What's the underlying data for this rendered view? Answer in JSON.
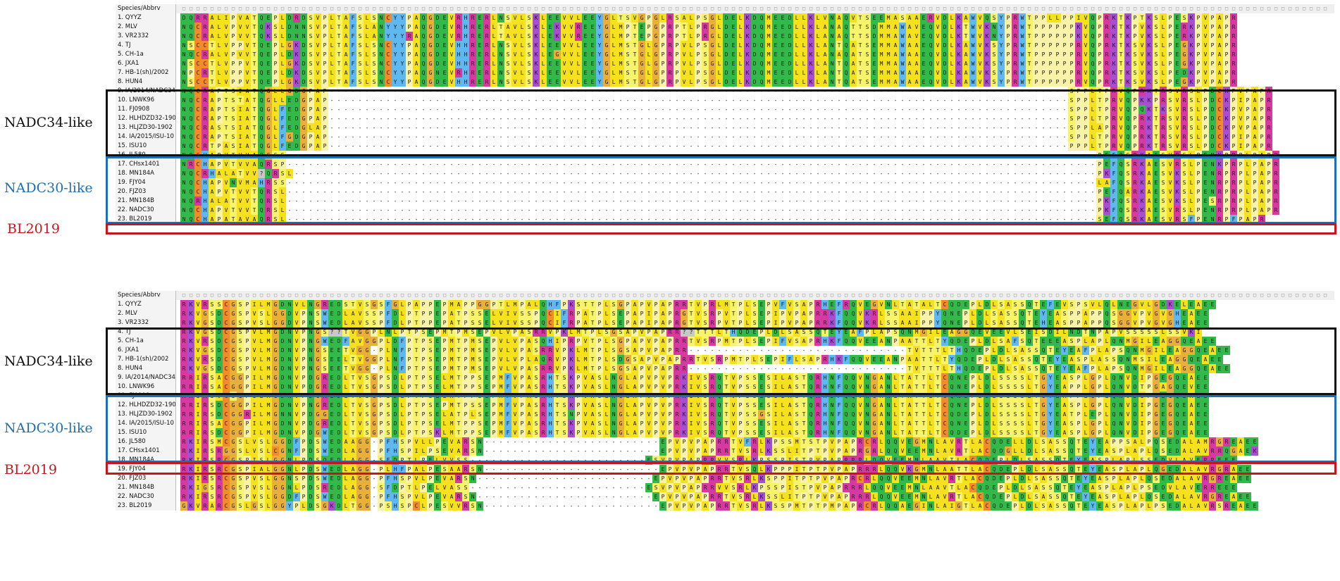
{
  "header_label": "Species/Abbrv",
  "groups": [
    {
      "label": "NADC34-like",
      "color": "#111111"
    },
    {
      "label": "NADC30-like",
      "color": "#1f6fb2"
    },
    {
      "label": "BL2019",
      "color": "#c4161c"
    }
  ],
  "blocks": [
    {
      "id": "top",
      "rows": [
        {
          "name": "1. QYYZ",
          "seq": "DQRRALIPVATQEPLDRDSVPLTAFSLSNCYYPAQGDEVRHRERLNSVLSKLEEVVLEEYGLTSVGPGLRSALPSGLDELKDQMEEDLLKLVNAQVTSEEMASAAERVDLKAWVQSYPRWTPPLLPPIVQPRKTKPTKSLPESKPVPAPR"
        },
        {
          "name": "2. MLV",
          "seq": "NQCRALVPVVTQKSLDNNSVPLTAFSLANYYYPAQGDEVRHRERLTAVLSKLEKVVREEYGLMPTEPGPRPTLPRGLDELKDQMEEDLLKLANAQTTSDMMAWAVEQVDLKTWVKNYPRWTPPPPPPKVQPRKTKPVKSLPERKPVPAPR"
        },
        {
          "name": "3. VR2332",
          "seq": "NQCRALVPVVTQKSLDNNSVPLTAFSLANYYYRAQGDEVRHRERLTAVLSKLEKVVREEYGLMPTEPGPRPTLPRGLDELKDQMEEDLLKLANAQTTSDMMAWAVEQVDLKTWVKNYPRWTPPPPPPKVQPRKTKPVKSLPERKPVPAPR"
        },
        {
          "name": "4. TJ",
          "seq": "NSCCTLVPPVTQEPLGKDSVPLTAFSLSNCYYPAQGDEVHHRERLNSVLSKLEEVVLEEYGLMSTGLGPRPVLPSGLDELKDQMEEDLLKLANTQATSEMMAWAAEQVDLKAWVKSYPRWTPPPPPPRVQPRKTKSVKSLPEGKPVPAPR"
        },
        {
          "name": "5. CH-1a",
          "seq": "NQCRALVPVVTQEPLDKDSVPLTAFSLSNCYYPAQGDEVHHRERLNSVLSKLEGVVLEEYGLMSTGLGPRPVLPSGLDELKDQMEEDLLKLANAQATSEMMAWAAEQVDLKAWVKSYPRWTPPPPPPRVQPRKTKSVKSLPEGKPVPAPR"
        },
        {
          "name": "6. JXA1",
          "seq": "NSCCTLVPPVTQEPLGKDSVPLTAFSLSNCYYPAQGDEVHHRERLNSVLSKLEEVVLEEYGLMSTGLGPRPVLPSGLDELKDQMEEDLLKLANTQATSEMMAWAAEQVDLKAWVKSYPRWTPPPPPPRVQPRKTKSVKSLPEGKPVPAPR"
        },
        {
          "name": "7. HB-1(sh)/2002",
          "seq": "NPCRTLVPPVTQEPLDKDSVPLTAFSLSNCYYPAQGNEVRHRERLNSVLSKLEEVVLEEYGLMSTGLGPRPVLPSGLDELKDQMEEDLLKLANTQATSEMMAWAAEQVDLKAWVKSYPRWTPPPPPPRVQPRKTKSVKSLPEDKPVPAPR"
        },
        {
          "name": "8. HUN4",
          "seq": "NSCCTLVPPVTQEPLGKDSVPLTAFSLSNCYYPAQGDEVHHRERLNSVLSKLEEVVLEEYGLMSTGLGPRPVLPSGLDELKDQMEEDLLKLANTQATSEMMAWAAEQVDLKAWVKSYPRWTPPPPPPRVQPRKTKSVKSLPEGKPVPAPR"
        },
        {
          "name": "9. IA/2014/NADC34",
          "seq": "NQCRAPTSIATQGLLGDGPAP---------------------------------------------------------------------------------------------------------SPPLTPRVQPRKTRSVRSLPDCKPVPAPR"
        },
        {
          "name": "10. LNWK96",
          "seq": "NQCRAPTSTATQGLLEDGPAP---------------------------------------------------------------------------------------------------------SPPLTPRVQPKKPRSVRSLPDCKPIPAPR"
        },
        {
          "name": "11. FJ0908",
          "seq": "NQCRAPTSIATQGLFEDGPAP---------------------------------------------------------------------------------------------------------SPPLTPRVQPQKTKSVRSLPDCKPVPAPR"
        },
        {
          "name": "12. HLHDZD32-1901",
          "seq": "NQCRAPTSIATQGLFEDGPAP---------------------------------------------------------------------------------------------------------SPPLTPRVQPRKTRSVRSLPDCKPVPAPR"
        },
        {
          "name": "13. HLJZD30-1902",
          "seq": "NQCRASTSIATQGLFEDGLAP---------------------------------------------------------------------------------------------------------SPPLAPRVQPRKTRSVRSLPDCKPVPAPR"
        },
        {
          "name": "14. IA/2015/ISU-10",
          "seq": "NQCRAPTSIATQGLFGDGPAP---------------------------------------------------------------------------------------------------------SPPLTPRVQPRKTRSVRSLPDCKPIPAPR"
        },
        {
          "name": "15. ISU10",
          "seq": "NQCRTPASIATQGLFEDGPAP---------------------------------------------------------------------------------------------------------PPPLTPRVQPRKTRSVRSLPDCKPIPAPR"
        },
        {
          "name": "16. JL580",
          "seq": "NQCHAPVTVVAQGSS-------------------------------------------------------------------------------------------------------------------PEFQSRKAESVRSLPENKPRPLPAPR"
        },
        {
          "name": "17. CHsx1401",
          "seq": "NRCHAPVTVVAQRSP-------------------------------------------------------------------------------------------------------------------PEFQSRKAESVRSLPENKPRPLPAPR"
        },
        {
          "name": "18. MN184A",
          "seq": "NQCRHALATVV?QRSL------------------------------------------------------------------------------------------------------------------PKFQSRKAESVKSLPENRPRPLPAPR"
        },
        {
          "name": "19. FJY04",
          "seq": "NQCHAPVNVMAHRSS-------------------------------------------------------------------------------------------------------------------LAFQSRKAESVKSLPENRPRPLPAPR"
        },
        {
          "name": "20. FJZ03",
          "seq": "NQCHAPVTVVTQRSL-------------------------------------------------------------------------------------------------------------------PEFQARKAESVKSLPENRPRPLPAPR"
        },
        {
          "name": "21. MN184B",
          "seq": "NQRHALATVVTQRSL-------------------------------------------------------------------------------------------------------------------PKFQSRKAESVKSLPESRPRPLPAPR"
        },
        {
          "name": "22. NADC30",
          "seq": "NQCHAPVTVVTQRSL-------------------------------------------------------------------------------------------------------------------PKFQSRKAESVRSLPENRPRPLPAPR"
        },
        {
          "name": "23. BL2019",
          "seq": "NQCHAPATAVAQRSL-------------------------------------------------------------------------------------------------------------------SEFQSRKAESVRSFPENRPFPAPR"
        }
      ]
    },
    {
      "id": "bottom",
      "rows": [
        {
          "name": "1. QYYZ",
          "seq": "RKVRSSCGSPILMGDNVLNGREDSTVSGSFGLPAPPEPMAPPGGPTLMPALQHFPKSTTPLSGPAPVPAPRRTVPRLMTPLSEPVFVSAPRHEFRQVEGVNLTATALTCQDEPLDLSASSQTEFEVSPSVLQLNEGVLGDKELEAEE"
        },
        {
          "name": "2. MLV",
          "seq": "RKVGSDCGSPVSLGGDVPNSWEDLAVSSPFDLPTPPEPATPSSELVIVSSPQCIFRPATPLSEPAPIPAPRGTVSRPVTPLSEPIPVPAPRRKFQQVKRLSSAAIPPYQNEPLDLSASSQTEYEASPPAPPQSGGVPVGVGHEAEE"
        },
        {
          "name": "3. VR2332",
          "seq": "RKVGSDCGSPVSLGGDVPNSWEDLAVSSPFDLPTPPEPATPSSELVIVSSPQCIFRPATPLSEPAPIPAPRGTVSRPVTPLSEPIPVPAPRRKFQQVKRLSSAAIPPYQNEPLDLSASSQTEHEASPPAPPQSGGVPVGVGHEAEE"
        },
        {
          "name": "4. TJ",
          "seq": "RKVGSDCGSPVLMGDNVPNGS??TVGGPLNLPTPSEPMTPMSEPVLVPASRRVPKLMTPLSGSAPVPAPRR??TTTLTHQDEPLDLSASSQTEYEAFPLAPSQNMGILEAGGQEVEEVLSEISDILNDTNPAPVSSSSSLSSVKI"
        },
        {
          "name": "5. CH-1a",
          "seq": "RKVRSDCGSPVLMGDNVPNGWEDFAVGGPLDFPTPSEPMTPMSEPVLVPASQHIPRPVTPLSGPAPVPAPRRTVSRPMTPLSEPIFVSAPRHKFQQVEEANPAATTLTYQDEPLDLSAFSQTEEEASPLAPLQNMGILEAGGQEAEE"
        },
        {
          "name": "6. JXA1",
          "seq": "RKVGSDCGSPVLMGDNVPNGSEETVGG-PLNFPTPSEPMTPMSEPVLVPASRRVPKLMTPLSGSAPVPAPRR-------------------------------TVTTTLTHQDEPLDLSASSQTEYEAFPLAPSQNMGILEAGGQEAEE"
        },
        {
          "name": "7. HB-1(sh)/2002",
          "seq": "RKVRSDCGSPVLMGDNVPNGSEELTVGGPLNFPTPSEPMTPMSEPVLVPLAQRVPKLMTPLSDGSAPVPAPRRTVSRPMTPLSEPIFLSAPRHKFQQVEEANPAATTLTYQDEPLDLSASSQTEYEASPLASSQNMSILEAGGQEAEE"
        },
        {
          "name": "8. HUN4",
          "seq": "RKVGSDCGSPVLMGDNVPNGSEETVGG-PLNFPTPSEPMTPMSEPVLVPASRRVPKLMTPLSGSAPVPAPRR-------------------------------TVTTTLTHQDEPLDLSASSQTEYEAFPLAPSQNMGILEAGGQEAEE"
        },
        {
          "name": "9. IA/2014/NADC34",
          "seq": "RRIRSACGGPILMGDNVPDGREDLTVSGPSDLPTPSELMTPPSEPMFVPASRHTSKPVASLNGLAPVPVPRKIVSRQTVPSSESILASTQRHNFQQVNGANLTATTLTCQNEPLDLSSSSLTGYEASPLGPLQNVDIPGEGQEAEE"
        },
        {
          "name": "10. LNWK96",
          "seq": "RRIRSACGGPILMGDNVPDGREDLTVSGPSDLPTPSELMTPPSEPMFVPASRHTSKPVASLNGLAPVPVPRKIVSRQTVPSSESILASTQRHNFQQVNGANLTATTLTCQNEPLDLSSSSLTGYEAPPLGPLQNVDTPGAGQEVEE"
        },
        {
          "name": "11. FJ0908",
          "seq": "RRIRSVCSGPILMGDNVPDGREDLTVSGPSDLPTPSELMTPPSEPMFVPASRHTSKPVASLNGLAPVPVPRKIVSRQTVPSSESILASTQRHDFQQVNGANLTATTLTCQNEPLDLSSSSLTGYEAPPLGPLQNVDIPGEGQEAEE"
        },
        {
          "name": "12. HLHDZD32-1901",
          "seq": "RRIRSDCGGPILMGDNVPNGREDLTVSGPSDLPTPSEPMTPSSEPMFVPASRHTSKPVASLNGLAPVPVPRKIVSRQTVPSSESILASTQRHNFQQVNGANLTATTLTCQNEPLDLSSSSLTGYEASPLGPLQNVDIPGEGQEAEE"
        },
        {
          "name": "13. HLJZD30-1902",
          "seq": "RRIRSDCGGRILMGNNVPDGGEDLTVSGPSDLPTPSELATPLSEPMFVPASRHTSNPVASLNGLAPVPVPRKIVSRQTVPSSGSILASTQRHNFQQVNGANLTATTLTCQDEPLDLSSSSLTGYEATPLEPLQNVDIPGEGQEAEE"
        },
        {
          "name": "14. IA/2015/ISU-10",
          "seq": "RRIRSACGGPILMGDNVPDGREDLTVSGPSDLPTPSELMTPPSEPMFVPASRHTSKPVASLNGLAPVPVPRKIVSRQTVPSSESILASTQRHNFQQVNGANLTATTLTCQNEPLDLSSSSLTGYEASPLGPLQNVDIPGEGQEAEE"
        },
        {
          "name": "15. ISU10",
          "seq": "RRIRSDCGGPILMGDNVPDGWEDLTVSGPSDLPTPSKLMTPPSEPMFVPASRHTSKPVASLNGLAPVPVPRKIVSRQTVPSSESILASTQRHNFQQVNGANLTATTLTCQDEPLDLSSSSLTGYEASPLGPLQNVDIPGEGQEAEE"
        },
        {
          "name": "16. JL580",
          "seq": "RKIRSMCGSLVSLGGDFPDSWEDAAGG-PFHSPVLLPEVARSN-------------------------EPVPVPAPRRTVFRLKPSSMTSTPVPAPRCRLQQVEGMNLAVRTLACQDELLDLSASSQTEYEAPPSALPQSEDALAMRGREAEE"
        },
        {
          "name": "17. CHsx1401",
          "seq": "RKIRSRGGSLVSLCGNFPDSWEDLAGG-PFHSPILPSEVARSN-------------------------EPVPVPAPRRTVSRLKSSLITPTPVPAPRGRLQQVEEMNLAVRTLACQDGLLDLSASSQTEYEASPLAPLQSEDALAVRRQGAEK"
        },
        {
          "name": "18. MN184A",
          "seq": "RKIRSRCGSPISLGGNLPDSQEDLAGG-SFDPTLPELVVSS-------------------------ESVPVPAPRRVVSRLKPSSPISTPVPAPRRRLQQVEEMNLAAVTLACQDEPLDLSASSQTEYEASPLAPLSSEDVLAVERREEE"
        },
        {
          "name": "19. FJY04",
          "seq": "RKIRSRCGSPIALGGNLPDSWEDLAGG-PLHFPALPESAARSN-------------------------EPVPVPAPRRTVSQLKPPPITPTPVPAPRRRLQQVKGMNLAATTLACQDEPLDLSASSQTEYEASPLAPLQGEDALAVRGRAEE"
        },
        {
          "name": "20. FJZ03",
          "seq": "RKIRSRCGSPVSLGGNSPDSWEDLAGG-PFHSPVLPEVARSN-------------------------EPVPVPAPRRTVSRLKSPPITPTPVPAPRCRLQQVEEMNLAVRTLACQDEPLDLSASSQTEYEASPLAPLQSEDALAVRGREAEE"
        },
        {
          "name": "21. MN184B",
          "seq": "RKIGSRCGSPVSLGGNLPDSREDLAGG-SFDPTLPELVASS-------------------------ESVPVPAPRRVVSRLKPSSPISTPVPAPRRRLQQVEEMNLAAVTLACQDEPLDLSASSQTEYEASPLAPLPSEDVLAVERREEE"
        },
        {
          "name": "22. NADC30",
          "seq": "RKIRSRCGSPVSLGGDFPDSWEDLAGG-PFHSPVLPEVARSN-------------------------EPVPVPAPRRTVSRLKSSLITPTPVPAPRRRLQQVEEMNLAVRTLACQDEPLDLSASSQTEYEASPLAPLQSEDALAVRGREAEE"
        },
        {
          "name": "23. BL2019",
          "seq": "GKVRARCGSLGSLGGYPLDSGKDLTGG-PSHSPCLPESVVRSN-------------------------EPVPVPAPRRTVSRLKSSPMTPTPMPAPRCRLQQAEGINLAIGTLACQDEPLDLSASSQTEYEASPLAPLPSEDALAVRSREAEE"
        }
      ]
    }
  ],
  "residue_colors": {
    "A": "#f5e11e",
    "V": "#f5e11e",
    "L": "#f5e11e",
    "I": "#f5e11e",
    "M": "#f5e11e",
    "F": "#5fb8f0",
    "W": "#5fb8f0",
    "Y": "#5fb8f0",
    "H": "#5fb8f0",
    "K": "#a84fcf",
    "R": "#d63aa0",
    "D": "#33b84a",
    "E": "#33b84a",
    "N": "#33b84a",
    "Q": "#33b84a",
    "S": "#f7f36a",
    "T": "#f7f36a",
    "C": "#f28b2b",
    "G": "#e8b03a",
    "P": "#f8f3a8",
    "?": "#c8c8c8",
    "-": "#ffffff"
  }
}
